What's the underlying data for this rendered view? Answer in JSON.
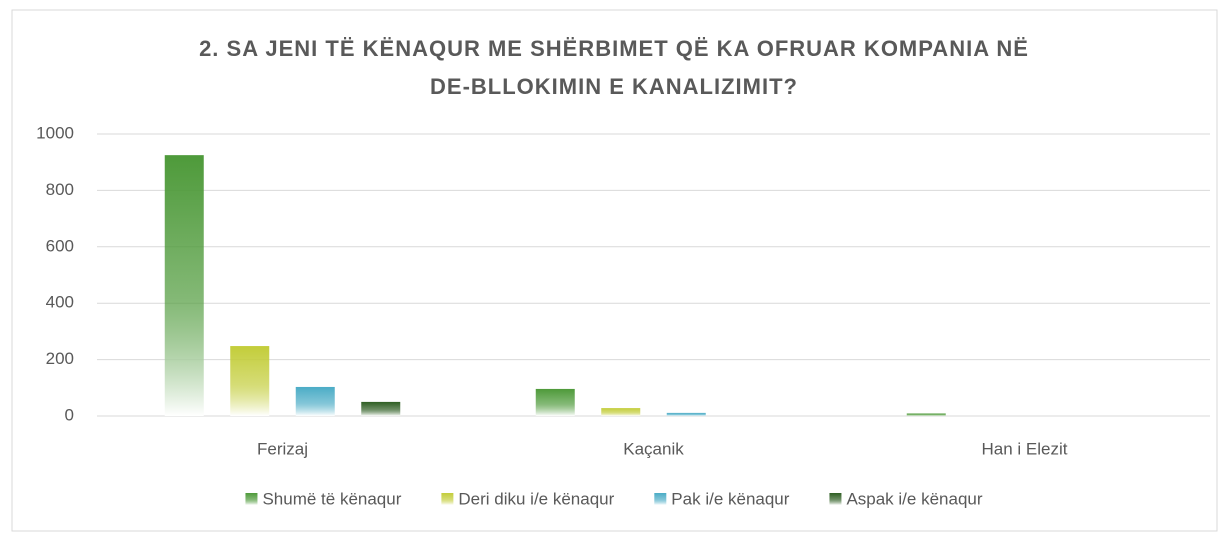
{
  "chart_data": {
    "type": "bar",
    "title": [
      "2. SA JENI TË KËNAQUR ME SHËRBIMET QË KA OFRUAR KOMPANIA NË",
      "DE-BLLOKIMIN E KANALIZIMIT?"
    ],
    "categories": [
      "Ferizaj",
      "Kaçanik",
      "Han i Elezit"
    ],
    "series": [
      {
        "name": "Shumë të kënaqur",
        "color": "#4e9a3a",
        "values": [
          925,
          96,
          9
        ]
      },
      {
        "name": "Deri diku i/e kënaqur",
        "color": "#c3cd3a",
        "values": [
          248,
          28,
          0
        ]
      },
      {
        "name": "Pak i/e kënaqur",
        "color": "#4bacc6",
        "values": [
          103,
          11,
          0
        ]
      },
      {
        "name": "Aspak i/e kënaqur",
        "color": "#2e5e22",
        "values": [
          50,
          0,
          0
        ]
      }
    ],
    "ylim": [
      0,
      1000
    ],
    "yticks": [
      0,
      200,
      400,
      600,
      800,
      1000
    ],
    "grid": true,
    "legend": "bottom"
  }
}
